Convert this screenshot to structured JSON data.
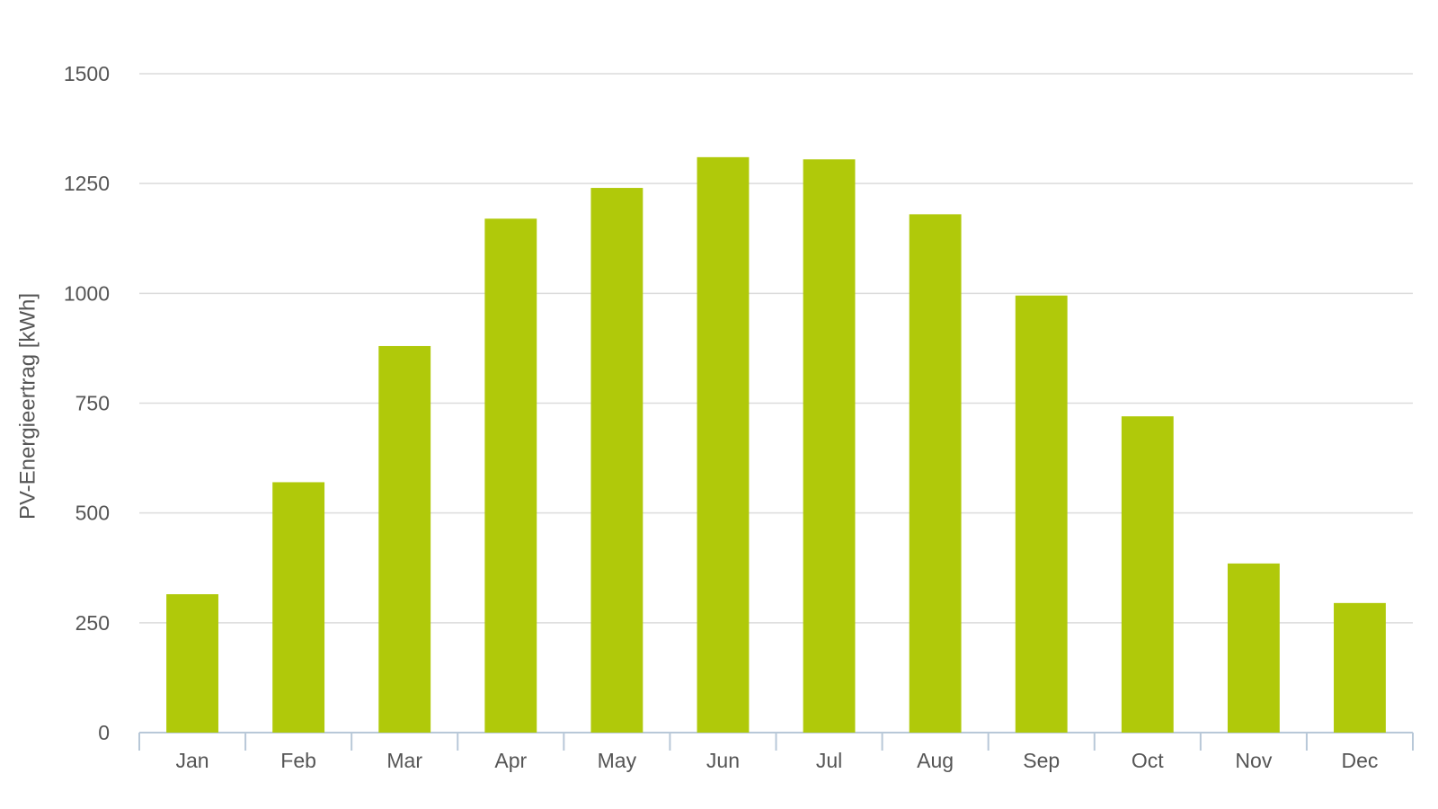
{
  "chart_data": {
    "type": "bar",
    "y_label": "PV-Energieertrag [kWh]",
    "categories": [
      "Jan",
      "Feb",
      "Mar",
      "Apr",
      "May",
      "Jun",
      "Jul",
      "Aug",
      "Sep",
      "Oct",
      "Nov",
      "Dec"
    ],
    "values": [
      315,
      570,
      880,
      1170,
      1240,
      1310,
      1305,
      1180,
      995,
      720,
      385,
      295
    ],
    "color": "#b0c90a",
    "ylim": [
      0,
      1500
    ],
    "yticks": [
      0,
      250,
      500,
      750,
      1000,
      1250,
      1500
    ],
    "grid": true
  }
}
